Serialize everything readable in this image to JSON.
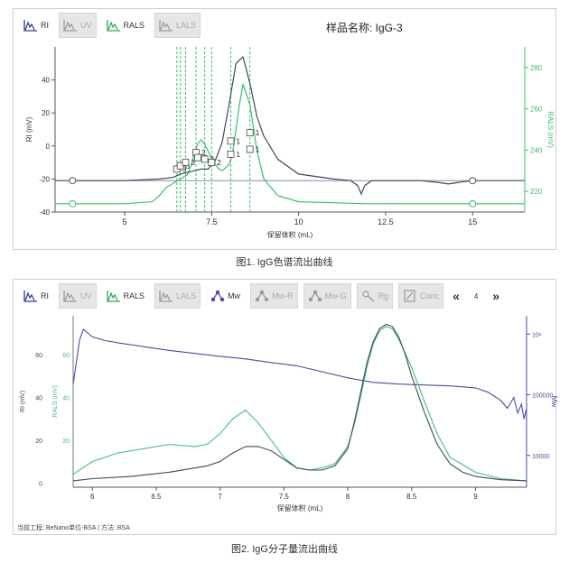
{
  "panel1": {
    "toolbar": [
      {
        "label": "RI",
        "enabled": true,
        "icon": "ri-signal-icon",
        "color": "#2b3a8c"
      },
      {
        "label": "UV",
        "enabled": false,
        "icon": "uv-signal-icon",
        "color": "#999999"
      },
      {
        "label": "RALS",
        "enabled": true,
        "icon": "rals-signal-icon",
        "color": "#2aa84a"
      },
      {
        "label": "LALS",
        "enabled": false,
        "icon": "lals-signal-icon",
        "color": "#999999"
      }
    ],
    "sample_name": "样品名称: IgG-3",
    "caption": "图1. IgG色谱流出曲线"
  },
  "panel2": {
    "toolbar": [
      {
        "label": "RI",
        "enabled": true,
        "icon": "ri-signal-icon",
        "color": "#2b3a8c"
      },
      {
        "label": "UV",
        "enabled": false,
        "icon": "uv-signal-icon",
        "color": "#999999"
      },
      {
        "label": "RALS",
        "enabled": true,
        "icon": "rals-signal-icon",
        "color": "#2aa84a"
      },
      {
        "label": "LALS",
        "enabled": false,
        "icon": "lals-signal-icon",
        "color": "#999999"
      },
      {
        "label": "Mw",
        "enabled": true,
        "icon": "molecule-icon",
        "color": "#5a3fa8"
      },
      {
        "label": "Mw-R",
        "enabled": false,
        "icon": "molecule-r-icon",
        "color": "#999999"
      },
      {
        "label": "Mw-G",
        "enabled": false,
        "icon": "molecule-g-icon",
        "color": "#999999"
      },
      {
        "label": "Rg",
        "enabled": false,
        "icon": "rg-icon",
        "color": "#999999"
      },
      {
        "label": "Conc",
        "enabled": false,
        "icon": "conc-icon",
        "color": "#999999"
      }
    ],
    "nav_prev": "«",
    "page": "4",
    "nav_next": "»",
    "footer": "当前工程: BeNano单位-BSA | 方法: BSA",
    "caption": "图2. IgG分子量流出曲线"
  },
  "chart_data": [
    {
      "type": "line",
      "xlabel": "保留体积 (mL)",
      "ylabel_left": "RI (mV)",
      "ylabel_right": "RALS (mV)",
      "xlim": [
        3,
        16.5
      ],
      "xticks": [
        5,
        7.5,
        10,
        12.5,
        15
      ],
      "ylim_left": [
        -40,
        60
      ],
      "yticks_left": [
        -40,
        -20,
        0,
        20,
        40
      ],
      "ylim_right": [
        210,
        290
      ],
      "yticks_right": [
        220,
        240,
        260,
        280
      ],
      "grid": false,
      "colors": {
        "ri": "#3c4a5e",
        "rals": "#36c26a",
        "marker": "#36c26a",
        "baseline_ri": "#8a8aa8"
      },
      "series": [
        {
          "axis": "left",
          "x": [
            3.0,
            5.0,
            6.0,
            6.4,
            6.6,
            6.8,
            7.0,
            7.2,
            7.4,
            7.6,
            7.8,
            8.0,
            8.2,
            8.4,
            8.6,
            8.8,
            9.0,
            9.4,
            10.0,
            11.0,
            11.5,
            11.7,
            11.8,
            11.9,
            12.1,
            12.5,
            13.5,
            14.0,
            14.3,
            14.6,
            15.0,
            16.5
          ],
          "y": [
            -21,
            -21,
            -20,
            -19,
            -17,
            -16,
            -15,
            -14,
            -14,
            -9,
            2,
            25,
            50,
            54,
            38,
            18,
            6,
            -8,
            -17,
            -20,
            -21,
            -24,
            -29,
            -24,
            -21,
            -21,
            -21,
            -22,
            -23,
            -22,
            -21,
            -21
          ]
        },
        {
          "axis": "right",
          "x": [
            3.0,
            4.0,
            5.0,
            5.8,
            6.0,
            6.2,
            6.4,
            6.6,
            6.8,
            6.9,
            7.0,
            7.1,
            7.2,
            7.3,
            7.5,
            7.7,
            7.8,
            8.0,
            8.1,
            8.2,
            8.3,
            8.4,
            8.6,
            8.8,
            9.0,
            9.4,
            10.0,
            12.0,
            14.0,
            16.5
          ],
          "y": [
            214,
            214,
            214,
            215,
            218,
            222,
            224,
            226,
            228,
            232,
            238,
            243,
            245,
            243,
            236,
            231,
            230,
            233,
            238,
            250,
            262,
            272,
            262,
            240,
            226,
            218,
            215,
            214,
            214,
            214
          ]
        }
      ],
      "markers": [
        {
          "x": 6.5,
          "y": -14,
          "label": "3"
        },
        {
          "x": 6.6,
          "y": -12,
          "label": "3"
        },
        {
          "x": 6.75,
          "y": -10,
          "label": "3"
        },
        {
          "x": 7.05,
          "y": -4,
          "label": "2"
        },
        {
          "x": 7.1,
          "y": -7,
          "label": "2"
        },
        {
          "x": 7.3,
          "y": -8,
          "label": "2"
        },
        {
          "x": 7.5,
          "y": -10,
          "label": "2"
        },
        {
          "x": 8.05,
          "y": 3,
          "label": "1"
        },
        {
          "x": 8.05,
          "y": -5,
          "label": "1"
        },
        {
          "x": 8.6,
          "y": 8,
          "label": "1"
        },
        {
          "x": 8.6,
          "y": -2,
          "label": "1"
        }
      ],
      "marker_lines_x": [
        6.5,
        6.6,
        6.75,
        7.05,
        7.3,
        7.5,
        8.05,
        8.6
      ],
      "baseline_points": [
        {
          "x": 3.5,
          "y": -21
        },
        {
          "x": 15.0,
          "y": -21
        }
      ],
      "right_markers": [
        {
          "x": 3.5,
          "y": 214
        },
        {
          "x": 15.0,
          "y": 214
        }
      ]
    },
    {
      "type": "line",
      "xlabel": "保留体积 (mL)",
      "ylabel_left": "RI (mV)",
      "ylabel_mid": "RALS (mV)",
      "ylabel_right": "Mw",
      "xlim": [
        5.85,
        9.4
      ],
      "xticks": [
        6,
        6.5,
        7,
        7.5,
        8,
        8.5,
        9
      ],
      "ylim_left": [
        -2,
        78
      ],
      "yticks_left": [
        0,
        20,
        40,
        60
      ],
      "yticks_mid": [
        20,
        40,
        60
      ],
      "ylim_right_log": [
        3000,
        2000000
      ],
      "yticks_right": [
        {
          "value": 10000,
          "label": "10000"
        },
        {
          "value": 100000,
          "label": "100000"
        },
        {
          "value": 1000000,
          "label": "10⁶"
        }
      ],
      "grid": false,
      "colors": {
        "ri": "#3c4a5e",
        "rals": "#40c080",
        "mw": "#4a4aa8"
      },
      "series": [
        {
          "axis": "left",
          "x": [
            5.85,
            6.0,
            6.3,
            6.6,
            6.9,
            7.0,
            7.1,
            7.2,
            7.3,
            7.4,
            7.5,
            7.6,
            7.7,
            7.8,
            7.9,
            8.0,
            8.05,
            8.1,
            8.15,
            8.2,
            8.25,
            8.3,
            8.35,
            8.4,
            8.45,
            8.5,
            8.6,
            8.7,
            8.8,
            8.9,
            9.0,
            9.2,
            9.4
          ],
          "y": [
            1,
            2,
            3,
            5,
            8,
            10,
            14,
            17,
            17,
            15,
            11,
            7,
            6,
            6,
            8,
            16,
            28,
            42,
            56,
            66,
            72,
            74,
            73,
            68,
            60,
            50,
            33,
            18,
            9,
            5,
            3,
            1.5,
            1
          ]
        },
        {
          "axis": "left",
          "x": [
            5.85,
            5.9,
            6.0,
            6.2,
            6.4,
            6.6,
            6.8,
            6.9,
            7.0,
            7.1,
            7.2,
            7.3,
            7.4,
            7.5,
            7.6,
            7.7,
            7.8,
            7.9,
            8.0,
            8.05,
            8.1,
            8.15,
            8.2,
            8.25,
            8.3,
            8.35,
            8.4,
            8.5,
            8.6,
            8.7,
            8.8,
            9.0,
            9.2,
            9.4
          ],
          "y": [
            4,
            6,
            10,
            14,
            16,
            18,
            17,
            18,
            23,
            30,
            34,
            28,
            20,
            12,
            7,
            6,
            7,
            9,
            17,
            27,
            40,
            54,
            65,
            71,
            73,
            72,
            67,
            54,
            38,
            23,
            12,
            5,
            2,
            1
          ]
        },
        {
          "axis": "right_log",
          "x": [
            5.85,
            5.9,
            5.93,
            6.0,
            6.1,
            6.2,
            6.4,
            6.6,
            6.8,
            7.0,
            7.2,
            7.4,
            7.6,
            7.8,
            8.0,
            8.2,
            8.4,
            8.6,
            8.8,
            9.0,
            9.1,
            9.2,
            9.25,
            9.3,
            9.33,
            9.36,
            9.38,
            9.4
          ],
          "y": [
            150000,
            800000,
            1200000,
            900000,
            780000,
            720000,
            620000,
            540000,
            480000,
            430000,
            390000,
            340000,
            300000,
            240000,
            190000,
            160000,
            150000,
            145000,
            140000,
            130000,
            110000,
            80000,
            60000,
            90000,
            50000,
            70000,
            40000,
            60000
          ]
        }
      ]
    }
  ]
}
